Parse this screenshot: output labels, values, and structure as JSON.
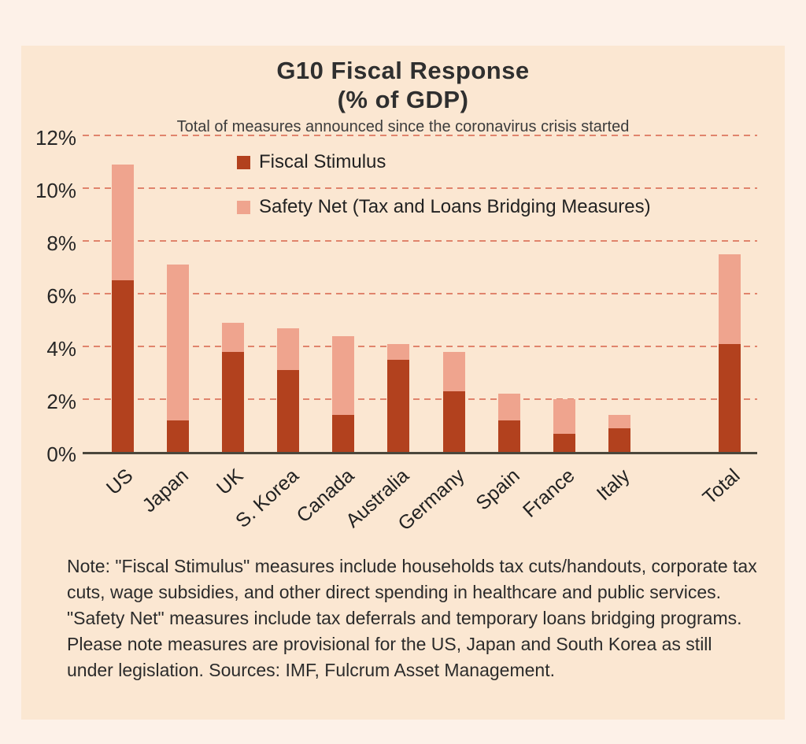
{
  "colors": {
    "page_background": "#fdf1e8",
    "card_background": "#fbe7d2",
    "fiscal_stimulus": "#b2411e",
    "safety_net": "#efa48e",
    "gridline": "#e0846c",
    "axis_line": "#4b473c",
    "text": "#2f2f2f"
  },
  "chart": {
    "title_line1": "G10 Fiscal Response",
    "title_line2": "(% of GDP)",
    "subtitle": "Total of measures announced since the coronavirus crisis started"
  },
  "chart_data": {
    "type": "bar",
    "stacked": true,
    "title": "G10 Fiscal Response (% of GDP)",
    "subtitle": "Total of measures announced since the coronavirus crisis started",
    "categories": [
      "US",
      "Japan",
      "UK",
      "S. Korea",
      "Canada",
      "Australia",
      "Germany",
      "Spain",
      "France",
      "Italy",
      "Total"
    ],
    "series": [
      {
        "name": "Fiscal Stimulus",
        "color": "#b2411e",
        "values": [
          6.5,
          1.2,
          3.8,
          3.1,
          1.4,
          3.5,
          2.3,
          1.2,
          0.7,
          0.9,
          4.1
        ]
      },
      {
        "name": "Safety Net (Tax and Loans Bridging Measures)",
        "color": "#efa48e",
        "values": [
          4.4,
          5.9,
          1.1,
          1.6,
          3.0,
          0.6,
          1.5,
          1.0,
          1.3,
          0.5,
          3.4
        ]
      }
    ],
    "stacked_totals": [
      10.9,
      7.1,
      4.9,
      4.7,
      4.4,
      4.1,
      3.8,
      2.2,
      2.0,
      1.4,
      7.5
    ],
    "ylim": [
      0,
      12
    ],
    "ytick_step": 2,
    "yticks": [
      "0%",
      "2%",
      "4%",
      "6%",
      "8%",
      "10%",
      "12%"
    ],
    "grid": "horizontal-dashed",
    "legend_position": "inside-top-left",
    "spacer_after_index": 9
  },
  "note": {
    "text": "Note: \"Fiscal Stimulus\" measures include households tax cuts/handouts, corporate tax cuts, wage subsidies, and other direct spending in healthcare and public services. \"Safety Net\" measures include tax deferrals and temporary loans bridging programs. Please note measures are provisional for the US, Japan and South Korea as still under legislation. Sources: IMF, Fulcrum Asset Management."
  }
}
